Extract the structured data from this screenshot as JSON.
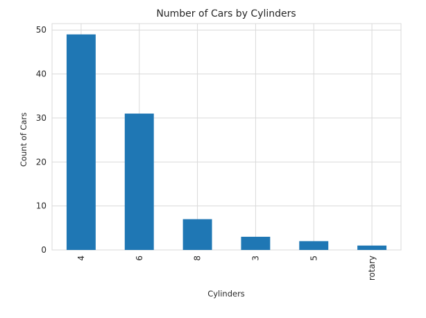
{
  "chart_data": {
    "type": "bar",
    "title": "Number of Cars by Cylinders",
    "xlabel": "Cylinders",
    "ylabel": "Count of Cars",
    "categories": [
      "4",
      "6",
      "8",
      "3",
      "5",
      "rotary"
    ],
    "values": [
      49,
      31,
      7,
      3,
      2,
      1
    ],
    "ylim": [
      0,
      51.45
    ],
    "yticks": [
      0,
      10,
      20,
      30,
      40,
      50
    ],
    "grid": true,
    "legend": "none",
    "bar_color": "#1f77b4",
    "x_tick_rotation": "vertical"
  }
}
